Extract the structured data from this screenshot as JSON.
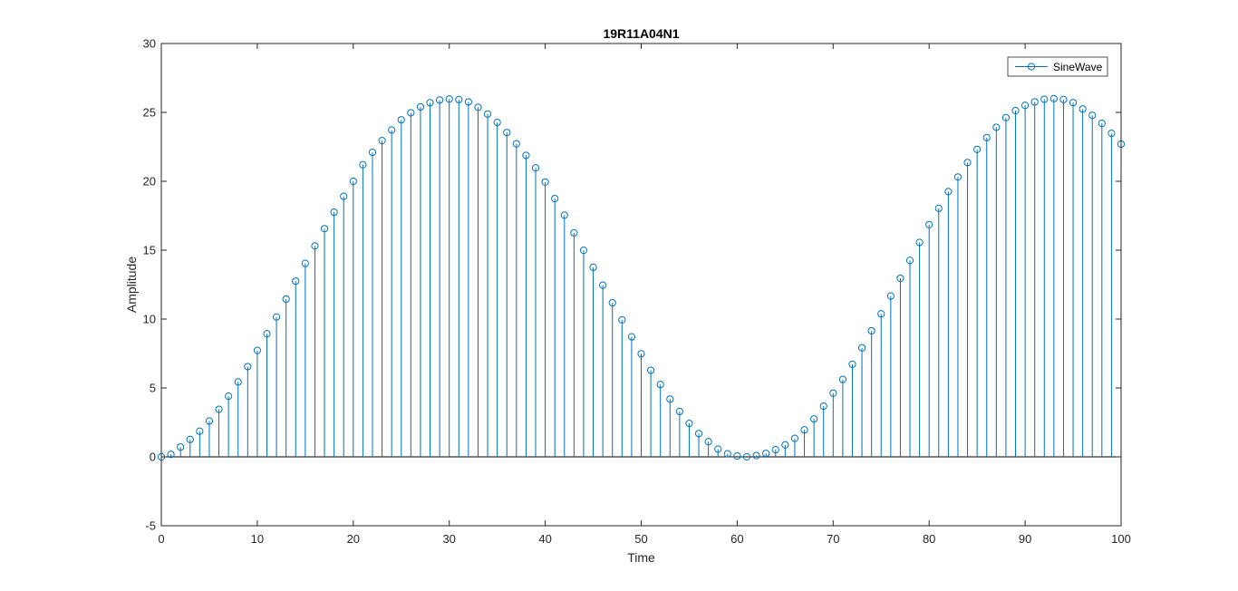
{
  "chart_data": {
    "type": "stem",
    "title": "19R11A04N1",
    "xlabel": "Time",
    "ylabel": "Amplitude",
    "xlim": [
      0,
      100
    ],
    "ylim": [
      -5,
      30
    ],
    "xticks": [
      0,
      10,
      20,
      30,
      40,
      50,
      60,
      70,
      80,
      90,
      100
    ],
    "yticks": [
      -5,
      0,
      5,
      10,
      15,
      20,
      25,
      30
    ],
    "xtick_labels": [
      "0",
      "10",
      "20",
      "30",
      "40",
      "50",
      "60",
      "70",
      "80",
      "90",
      "100"
    ],
    "ytick_labels": [
      "-5",
      "0",
      "5",
      "10",
      "15",
      "20",
      "25",
      "30"
    ],
    "legend": {
      "position": "top-right"
    },
    "series": [
      {
        "name": "SineWave",
        "color": "#0072BD",
        "marker": "circle",
        "x": [
          0,
          1,
          2,
          3,
          4,
          5,
          6,
          7,
          8,
          9,
          10,
          11,
          12,
          13,
          14,
          15,
          16,
          17,
          18,
          19,
          20,
          21,
          22,
          23,
          24,
          25,
          26,
          27,
          28,
          29,
          30,
          31,
          32,
          33,
          34,
          35,
          36,
          37,
          38,
          39,
          40,
          41,
          42,
          43,
          44,
          45,
          46,
          47,
          48,
          49,
          50,
          51,
          52,
          53,
          54,
          55,
          56,
          57,
          58,
          59,
          60,
          61,
          62,
          63,
          64,
          65,
          66,
          67,
          68,
          69,
          70,
          71,
          72,
          73,
          74,
          75,
          76,
          77,
          78,
          79,
          80,
          81,
          82,
          83,
          84,
          85,
          86,
          87,
          88,
          89,
          90,
          91,
          92,
          93,
          94,
          95,
          96,
          97,
          98,
          99,
          100
        ],
        "values": [
          0.0,
          0.18,
          0.71,
          1.26,
          1.86,
          2.6,
          3.45,
          4.4,
          5.44,
          6.55,
          7.72,
          8.93,
          10.15,
          11.45,
          12.75,
          14.04,
          15.31,
          16.56,
          17.76,
          18.91,
          20.0,
          21.2,
          22.1,
          22.95,
          23.72,
          24.46,
          24.97,
          25.4,
          25.7,
          25.9,
          25.97,
          25.93,
          25.76,
          25.37,
          24.88,
          24.27,
          23.54,
          22.72,
          21.88,
          20.97,
          19.94,
          18.74,
          17.54,
          16.26,
          14.99,
          13.76,
          12.46,
          11.18,
          9.94,
          8.71,
          7.48,
          6.28,
          5.25,
          4.19,
          3.29,
          2.43,
          1.69,
          1.1,
          0.56,
          0.22,
          0.06,
          0.0,
          0.09,
          0.25,
          0.52,
          0.87,
          1.34,
          1.96,
          2.75,
          3.68,
          4.62,
          5.62,
          6.72,
          7.91,
          9.15,
          10.38,
          11.67,
          12.96,
          14.26,
          15.56,
          16.85,
          18.04,
          19.25,
          20.31,
          21.36,
          22.31,
          23.17,
          23.92,
          24.62,
          25.13,
          25.51,
          25.76,
          25.95,
          26.0,
          25.93,
          25.71,
          25.25,
          24.79,
          24.2,
          23.48,
          22.7
        ]
      }
    ]
  }
}
